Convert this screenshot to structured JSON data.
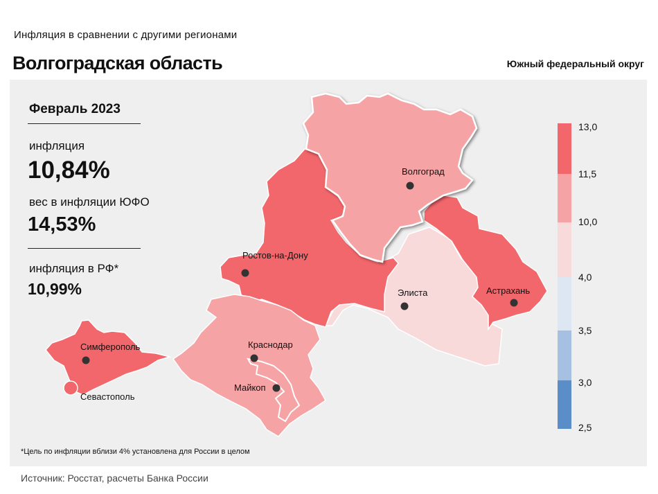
{
  "header": {
    "subtitle": "Инфляция  в сравнении  с другими  регионами",
    "title": "Волгоградская область",
    "district": "Южный федеральный округ"
  },
  "stats": {
    "period": "Февраль 2023",
    "inflation_label": "инфляция",
    "inflation_value": "10,84%",
    "weight_label": "вес в инфляции  ЮФО",
    "weight_value": "14,53%",
    "rf_label": "инфляция  в РФ*",
    "rf_value": "10,99%"
  },
  "map": {
    "highlighted_region": "Волгоград",
    "regions": [
      {
        "name": "Волгоград",
        "color": "#f6a3a5"
      },
      {
        "name": "Ростов-на-Дону",
        "color": "#f2676b"
      },
      {
        "name": "Астрахань",
        "color": "#f2676b"
      },
      {
        "name": "Элиста",
        "color": "#f9dadb"
      },
      {
        "name": "Краснодар",
        "color": "#f6a3a5"
      },
      {
        "name": "Майкоп",
        "color": "#f6a3a5"
      },
      {
        "name": "Симферополь",
        "color": "#f2676b"
      },
      {
        "name": "Севастополь",
        "color": "#f2676b"
      }
    ]
  },
  "scale": {
    "ticks": [
      "13,0",
      "11,5",
      "10,0",
      "4,0",
      "3,5",
      "3,0",
      "2,5"
    ],
    "colors": [
      "#f2676b",
      "#f6a3a5",
      "#f9dadb",
      "#dde6f3",
      "#a5c0e0",
      "#5b8dc9"
    ]
  },
  "footnote": "*Цель по инфляции вблизи 4% установлена для России в целом",
  "source": "Источник: Росстат, расчеты Банка России"
}
